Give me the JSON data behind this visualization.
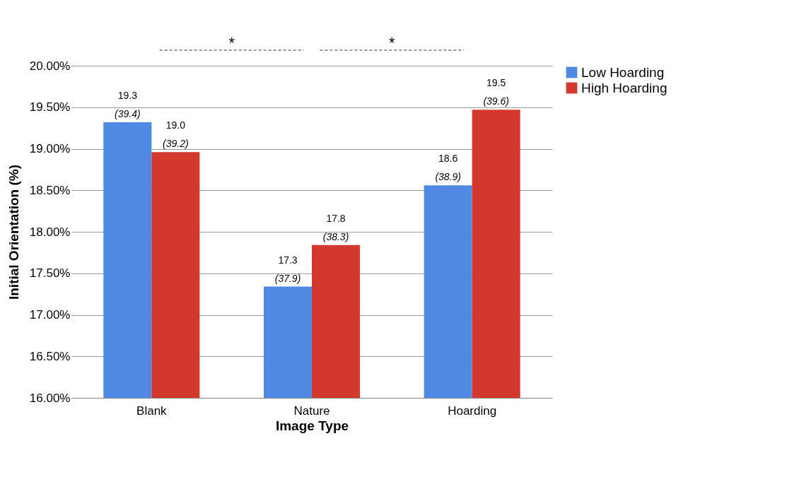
{
  "chart_data": {
    "type": "bar",
    "xlabel": "Image Type",
    "ylabel": "Initial Orientation (%)",
    "categories": [
      "Blank",
      "Nature",
      "Hoarding"
    ],
    "series": [
      {
        "name": "Low Hoarding",
        "color": "#5089e3",
        "values": [
          19.32,
          17.34,
          18.56
        ],
        "value_labels": [
          "19.3 (39.4)",
          "17.3 (37.9)",
          "18.6 (38.9)"
        ]
      },
      {
        "name": "High Hoarding",
        "color": "#d2392c",
        "values": [
          18.96,
          17.84,
          19.47
        ],
        "value_labels": [
          "19.0 (39.2)",
          "17.8 (38.3)",
          "19.5 (39.6)"
        ]
      }
    ],
    "ylim": [
      16,
      20
    ],
    "yticks": [
      {
        "value": 16,
        "label": "16.00%"
      },
      {
        "value": 16.5,
        "label": "16.50%"
      },
      {
        "value": 17,
        "label": "17.00%"
      },
      {
        "value": 17.5,
        "label": "17.50%"
      },
      {
        "value": 18,
        "label": "18.00%"
      },
      {
        "value": 18.5,
        "label": "18.50%"
      },
      {
        "value": 19,
        "label": "19.00%"
      },
      {
        "value": 19.5,
        "label": "19.50%"
      },
      {
        "value": 20,
        "label": "20.00%"
      }
    ],
    "grid": "y",
    "legend": "right",
    "annotations": [
      "*",
      "*"
    ]
  }
}
